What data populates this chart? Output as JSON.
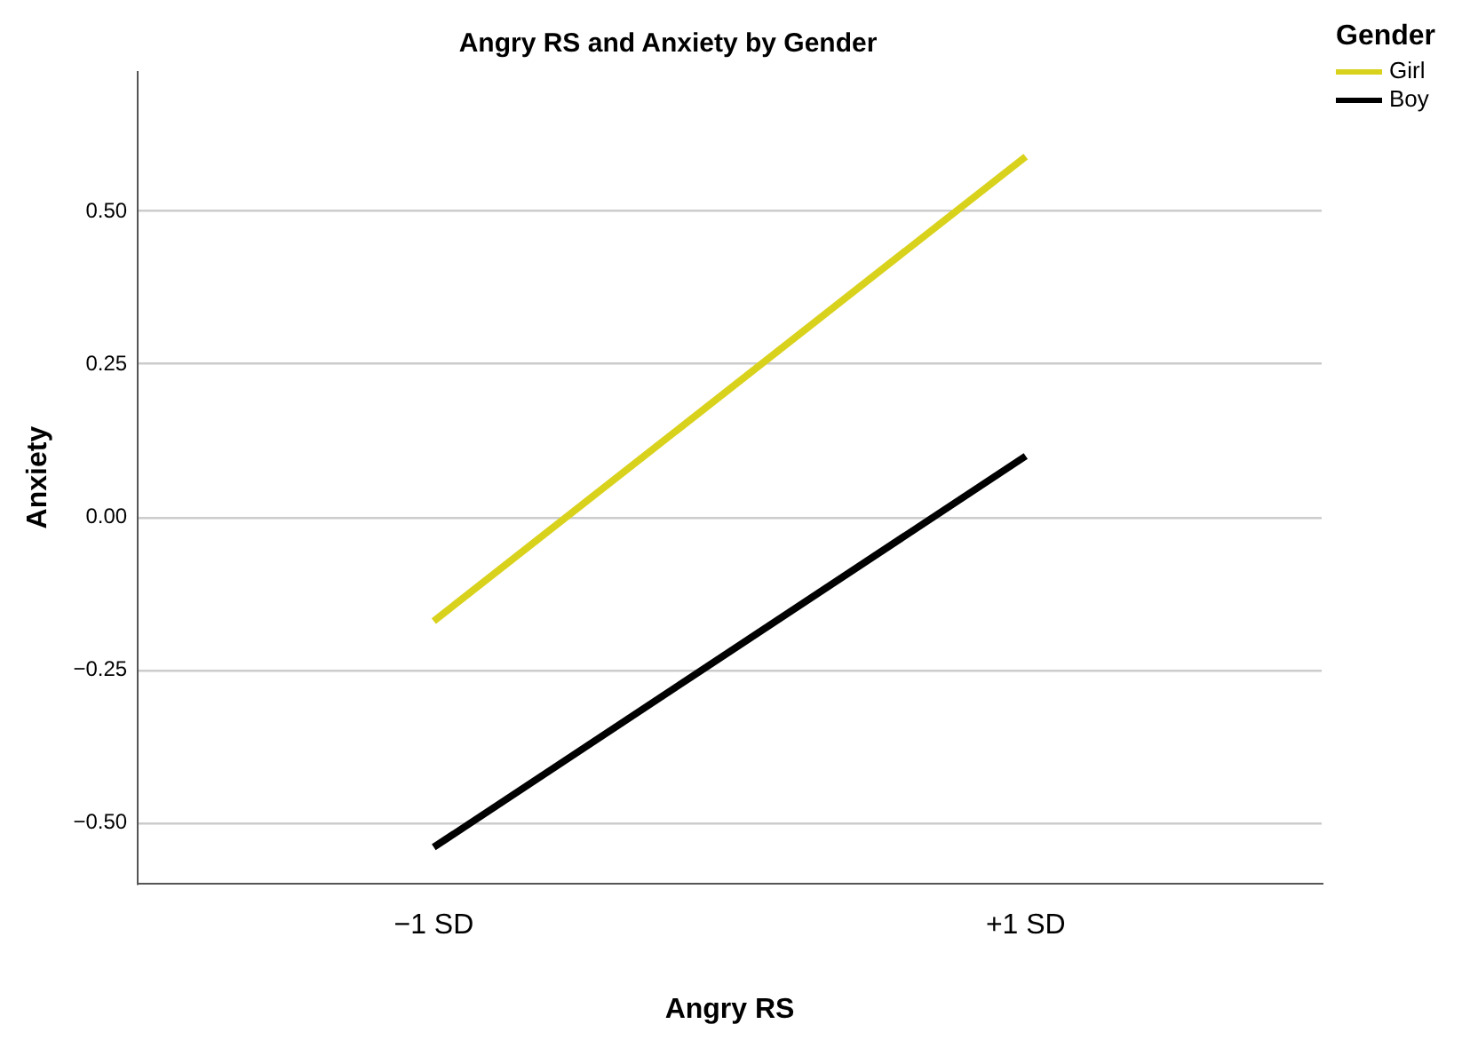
{
  "chart_data": {
    "type": "line",
    "title": "Angry RS and Anxiety by Gender",
    "xlabel": "Angry RS",
    "ylabel": "Anxiety",
    "legend_title": "Gender",
    "categories": [
      "−1 SD",
      "+1 SD"
    ],
    "series": [
      {
        "name": "Girl",
        "color": "#d9d21c",
        "values": [
          -0.17,
          0.59
        ]
      },
      {
        "name": "Boy",
        "color": "#000000",
        "values": [
          -0.54,
          0.1
        ]
      }
    ],
    "ylim": [
      -0.6,
      0.73
    ],
    "yticks": [
      {
        "value": -0.5,
        "label": "−0.50"
      },
      {
        "value": -0.25,
        "label": "−0.25"
      },
      {
        "value": 0,
        "label": "0.00"
      },
      {
        "value": 0.25,
        "label": "0.25"
      },
      {
        "value": 0.5,
        "label": "0.50"
      }
    ],
    "grid": "y",
    "legend": "top right",
    "marker": "none",
    "line_style": "solid"
  }
}
